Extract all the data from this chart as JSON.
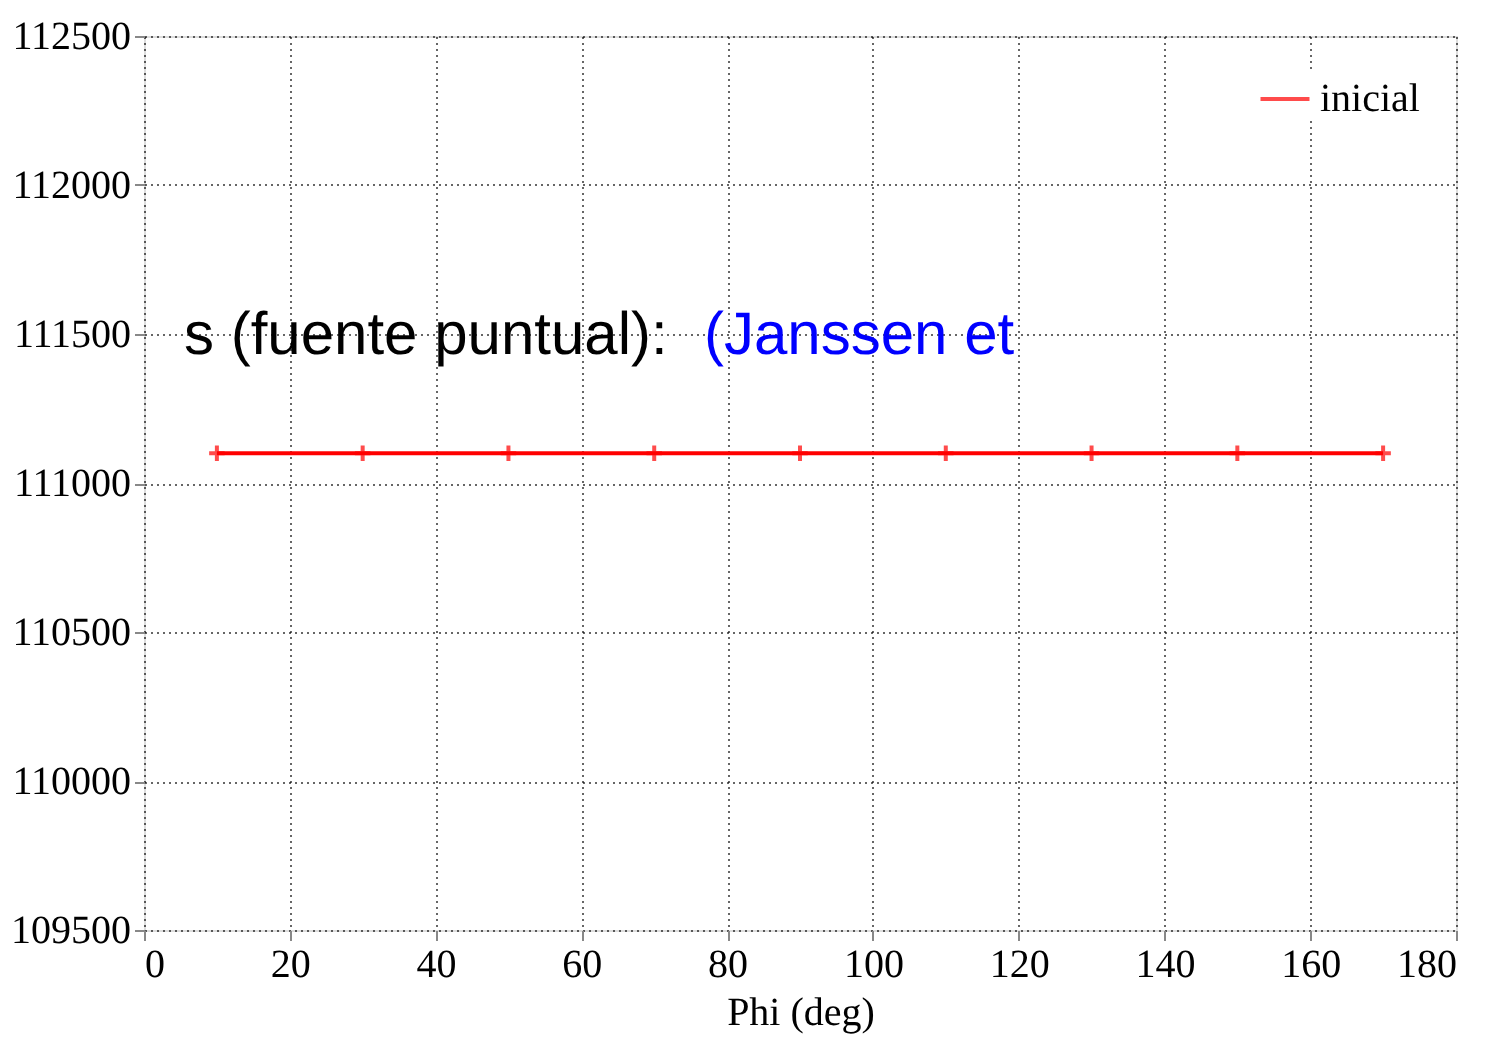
{
  "chart_data": {
    "type": "line",
    "xlabel": "Phi (deg)",
    "x": [
      10,
      30,
      50,
      70,
      90,
      110,
      130,
      150,
      170
    ],
    "series": [
      {
        "name": "inicial",
        "color": "#ff0000",
        "values": [
          111100,
          111100,
          111100,
          111100,
          111100,
          111100,
          111100,
          111100,
          111100
        ]
      }
    ],
    "xlim": [
      0,
      180
    ],
    "xticks": [
      0,
      20,
      40,
      60,
      80,
      100,
      120,
      140,
      160,
      180
    ],
    "ylim": [
      109500,
      112500
    ],
    "yticks": [
      109500,
      110000,
      110500,
      111000,
      111500,
      112000,
      112500
    ],
    "grid": true,
    "legend": "top right",
    "marker": "cross",
    "line_style": "solid",
    "annotations": [
      "s (fuente puntual):",
      "(Janssen et"
    ]
  }
}
